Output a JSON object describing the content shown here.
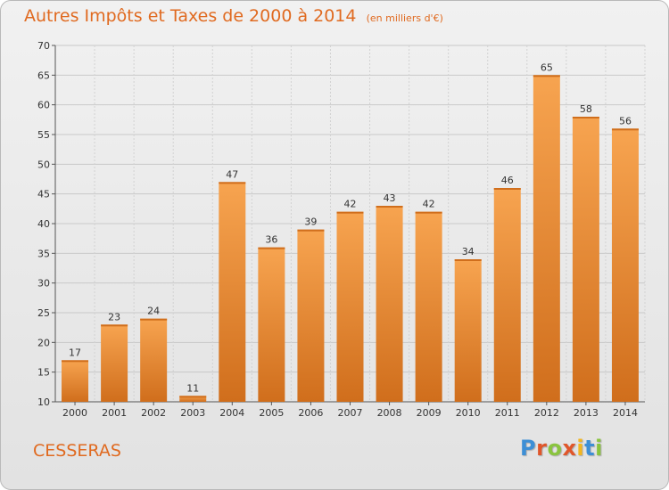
{
  "header": {
    "title": "Autres Impôts et Taxes de 2000 à 2014",
    "unit": "(en milliers d'€)"
  },
  "footer": {
    "commune": "CESSERAS",
    "brand_letters": [
      "P",
      "r",
      "o",
      "x",
      "i",
      "t",
      "i"
    ],
    "brand_colors": [
      "#3d8fd6",
      "#e0562a",
      "#8ac43f",
      "#e0562a",
      "#f3b61f",
      "#3d8fd6",
      "#8ac43f"
    ]
  },
  "colors": {
    "title": "#e06a20",
    "bar_light": "#f7a450",
    "bar_dark": "#d06e1c"
  },
  "chart_data": {
    "type": "bar",
    "title": "Autres Impôts et Taxes de 2000 à 2014",
    "categories": [
      "2000",
      "2001",
      "2002",
      "2003",
      "2004",
      "2005",
      "2006",
      "2007",
      "2008",
      "2009",
      "2010",
      "2011",
      "2012",
      "2013",
      "2014"
    ],
    "values": [
      17,
      23,
      24,
      11,
      47,
      36,
      39,
      42,
      43,
      42,
      34,
      46,
      65,
      58,
      56
    ],
    "ylim": [
      10,
      70
    ],
    "yticks": [
      10,
      15,
      20,
      25,
      30,
      35,
      40,
      45,
      50,
      55,
      60,
      65,
      70
    ],
    "grid": true,
    "legend": "none"
  }
}
